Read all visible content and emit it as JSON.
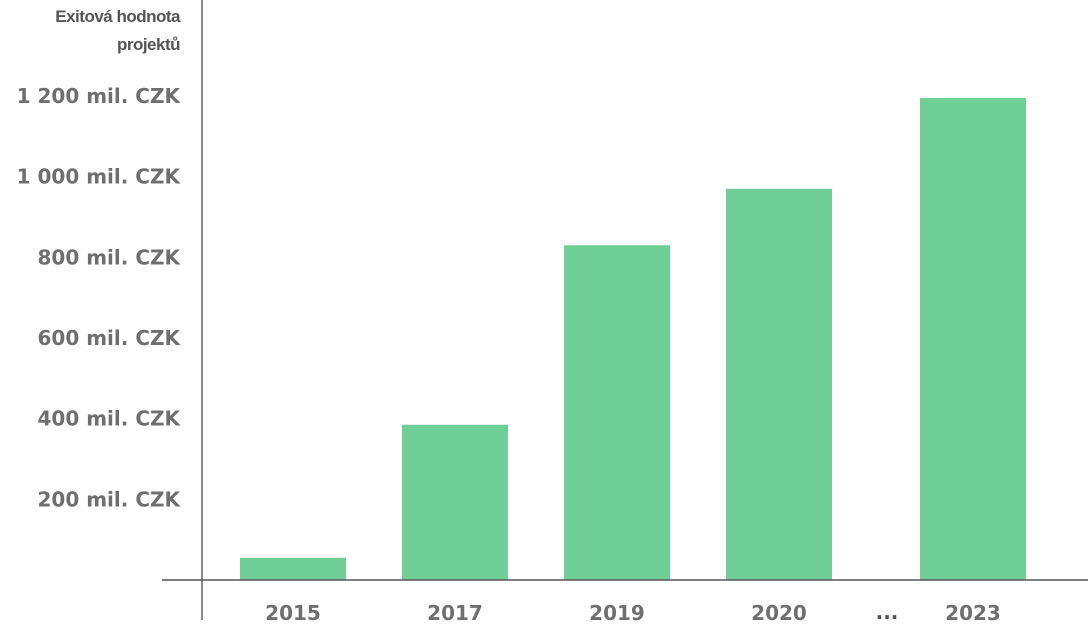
{
  "chart_data": {
    "type": "bar",
    "ylabel": "Exitová hodnota projektů",
    "ylabel_lines": [
      "Exitová hodnota",
      "projektů"
    ],
    "categories": [
      "2015",
      "2017",
      "2019",
      "2020",
      "2023"
    ],
    "values": [
      55,
      385,
      830,
      970,
      1195
    ],
    "x_gap_marker": "...",
    "yticks": [
      200,
      400,
      600,
      800,
      1000,
      1200
    ],
    "ytick_labels": [
      "200 mil. CZK",
      "400 mil. CZK",
      "600 mil. CZK",
      "800 mil. CZK",
      "1 000 mil. CZK",
      "1 200 mil. CZK"
    ],
    "ylim": [
      0,
      1200
    ],
    "grid": false,
    "legend": "none",
    "colors": {
      "bar": "#6fcf97",
      "axis": "#555555",
      "tick_text": "#6f6f6f"
    }
  }
}
